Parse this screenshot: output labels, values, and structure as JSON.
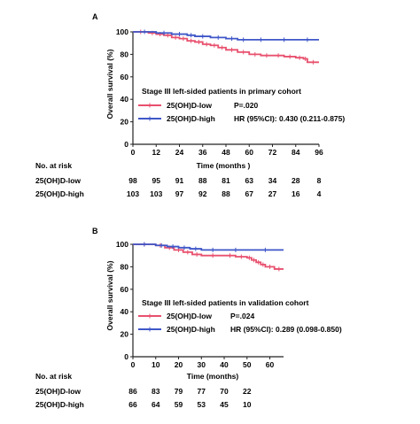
{
  "colors": {
    "low": "#e8506e",
    "high": "#3f57c8",
    "axis": "#222222"
  },
  "panels": [
    {
      "letter": "A",
      "title": "Stage III left-sided patients in primary cohort",
      "ylabel": "Overall survival  (%)",
      "xlabel": "Time (months )",
      "legend": [
        {
          "label": "25(OH)D-low",
          "stat": "P=.020"
        },
        {
          "label": "25(OH)D-high",
          "stat": "HR (95%CI): 0.430 (0.211-0.875)"
        }
      ],
      "risk": {
        "header": "No. at risk",
        "rows": [
          {
            "label": "25(OH)D-low",
            "values": [
              "98",
              "95",
              "91",
              "88",
              "81",
              "63",
              "34",
              "28",
              "8"
            ]
          },
          {
            "label": "25(OH)D-high",
            "values": [
              "103",
              "103",
              "97",
              "92",
              "88",
              "67",
              "27",
              "16",
              "4"
            ]
          }
        ]
      }
    },
    {
      "letter": "B",
      "title": "Stage III left-sided patients in validation cohort",
      "ylabel": "Overall survival  (%)",
      "xlabel": "Time (months)",
      "legend": [
        {
          "label": "25(OH)D-low",
          "stat": "P=.024"
        },
        {
          "label": "25(OH)D-high",
          "stat": "HR (95%CI): 0.289 (0.098-0.850)"
        }
      ],
      "risk": {
        "header": "No. at risk",
        "rows": [
          {
            "label": "25(OH)D-low",
            "values": [
              "86",
              "83",
              "79",
              "77",
              "70",
              "22"
            ]
          },
          {
            "label": "25(OH)D-high",
            "values": [
              "66",
              "64",
              "59",
              "53",
              "45",
              "10"
            ]
          }
        ]
      }
    }
  ],
  "chart_data": [
    {
      "type": "line",
      "subtype": "kaplan-meier step",
      "xlabel": "Time (months )",
      "ylabel": "Overall survival  (%)",
      "xlim": [
        0,
        96
      ],
      "ylim": [
        0,
        100
      ],
      "xticks": [
        0,
        12,
        24,
        36,
        48,
        60,
        72,
        84,
        96
      ],
      "yticks": [
        0,
        20,
        40,
        60,
        80,
        100
      ],
      "series": [
        {
          "name": "25(OH)D-low",
          "x": [
            0,
            8,
            12,
            16,
            20,
            24,
            28,
            32,
            36,
            40,
            44,
            48,
            54,
            60,
            66,
            72,
            78,
            84,
            88,
            90,
            96
          ],
          "y": [
            100,
            99,
            98,
            97,
            95,
            94,
            92,
            91,
            89,
            88,
            86,
            84,
            82,
            80,
            79,
            79,
            78,
            77,
            76,
            73,
            73
          ]
        },
        {
          "name": "25(OH)D-high",
          "x": [
            0,
            12,
            20,
            28,
            32,
            40,
            48,
            54,
            60,
            72,
            84,
            96
          ],
          "y": [
            100,
            99,
            98,
            97,
            96,
            95,
            94,
            93,
            93,
            93,
            93,
            93
          ]
        }
      ]
    },
    {
      "type": "line",
      "subtype": "kaplan-meier step",
      "xlabel": "Time (months)",
      "ylabel": "Overall survival  (%)",
      "xlim": [
        0,
        66
      ],
      "ylim": [
        0,
        100
      ],
      "xticks": [
        0,
        10,
        20,
        30,
        40,
        50,
        60
      ],
      "yticks": [
        0,
        20,
        40,
        60,
        80,
        100
      ],
      "series": [
        {
          "name": "25(OH)D-low",
          "x": [
            0,
            10,
            14,
            18,
            22,
            26,
            30,
            40,
            45,
            50,
            52,
            54,
            56,
            58,
            62,
            66
          ],
          "y": [
            100,
            99,
            97,
            95,
            93,
            91,
            90,
            90,
            89,
            88,
            86,
            84,
            82,
            80,
            78,
            78
          ]
        },
        {
          "name": "25(OH)D-high",
          "x": [
            0,
            10,
            15,
            20,
            25,
            30,
            40,
            50,
            66
          ],
          "y": [
            100,
            99,
            98,
            97,
            96,
            95,
            95,
            95,
            95
          ]
        }
      ]
    }
  ]
}
